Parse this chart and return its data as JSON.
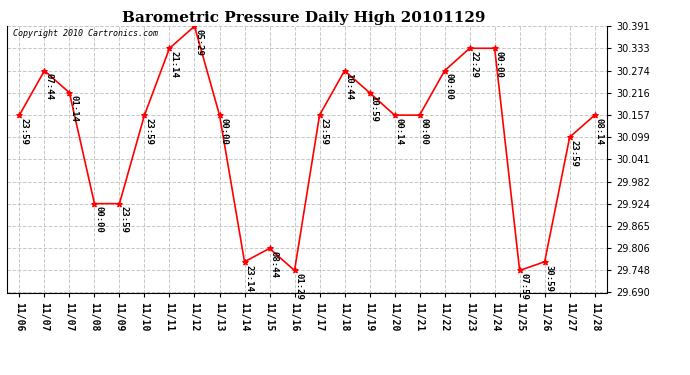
{
  "title": "Barometric Pressure Daily High 20101129",
  "copyright": "Copyright 2010 Cartronics.com",
  "x_tick_labels": [
    "11/06",
    "11/07",
    "11/07",
    "11/08",
    "11/09",
    "11/10",
    "11/11",
    "11/12",
    "11/13",
    "11/14",
    "11/15",
    "11/16",
    "11/17",
    "11/18",
    "11/19",
    "11/20",
    "11/21",
    "11/22",
    "11/23",
    "11/24",
    "11/25",
    "11/26",
    "11/27",
    "11/28"
  ],
  "x_positions": [
    0,
    1,
    2,
    3,
    4,
    5,
    6,
    7,
    8,
    9,
    10,
    11,
    12,
    13,
    14,
    15,
    16,
    17,
    18,
    19,
    20,
    21,
    22,
    23
  ],
  "y_values": [
    30.157,
    30.274,
    30.216,
    29.924,
    29.924,
    30.157,
    30.333,
    30.391,
    30.157,
    29.771,
    29.806,
    29.748,
    30.157,
    30.274,
    30.216,
    30.157,
    30.157,
    30.274,
    30.333,
    30.333,
    29.748,
    29.771,
    30.099,
    30.157
  ],
  "point_labels": [
    "23:59",
    "07:44",
    "01:14",
    "00:00",
    "23:59",
    "23:59",
    "21:14",
    "05:29",
    "00:00",
    "23:14",
    "08:44",
    "01:29",
    "23:59",
    "10:44",
    "10:59",
    "00:14",
    "00:00",
    "00:00",
    "22:29",
    "00:00",
    "07:59",
    "30:59",
    "23:59",
    "08:14"
  ],
  "ylim": [
    29.69,
    30.391
  ],
  "yticks": [
    29.69,
    29.748,
    29.806,
    29.865,
    29.924,
    29.982,
    30.041,
    30.099,
    30.157,
    30.216,
    30.274,
    30.333,
    30.391
  ],
  "line_color": "red",
  "marker_color": "red",
  "bg_color": "#ffffff",
  "grid_color": "#c8c8c8",
  "title_fontsize": 11,
  "label_fontsize": 7,
  "point_label_fontsize": 6.5
}
